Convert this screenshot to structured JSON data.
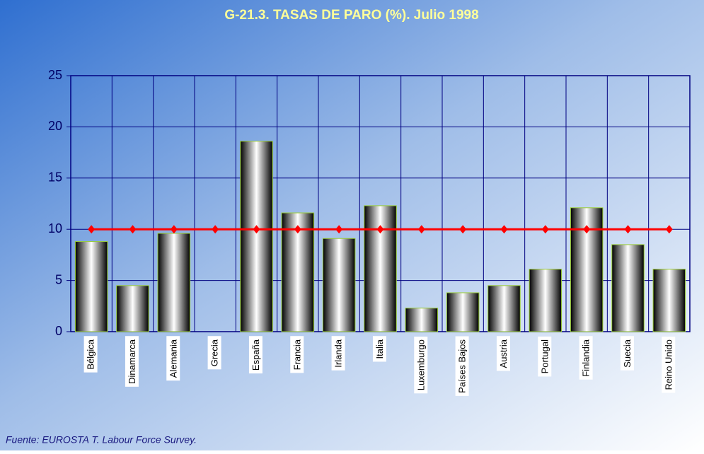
{
  "chart_data": {
    "type": "bar",
    "title": "G-21.3. TASAS DE PARO (%). Julio 1998",
    "categories": [
      "Bélgica",
      "Dinamarca",
      "Alemania",
      "Grecia",
      "España",
      "Francia",
      "Irlanda",
      "Italia",
      "Luxemburgo",
      "Países Bajos",
      "Austria",
      "Portugal",
      "Finlandia",
      "Suecia",
      "Reino Unido"
    ],
    "series": [
      {
        "type": "bar",
        "color": "#99cc33",
        "values": [
          8.8,
          4.5,
          9.6,
          null,
          18.6,
          11.6,
          9.1,
          12.3,
          2.3,
          3.8,
          4.5,
          6.1,
          12.1,
          8.5,
          6.1
        ]
      },
      {
        "type": "line",
        "color": "#ff0000",
        "values": [
          10,
          10,
          10,
          10,
          10,
          10,
          10,
          10,
          10,
          10,
          10,
          10,
          10,
          10,
          10
        ]
      }
    ],
    "ylim": [
      0,
      25
    ],
    "yticks": [
      0,
      5,
      10,
      15,
      20,
      25
    ],
    "grid": true,
    "source": "Fuente: EUROSTA T. Labour Force Survey."
  }
}
